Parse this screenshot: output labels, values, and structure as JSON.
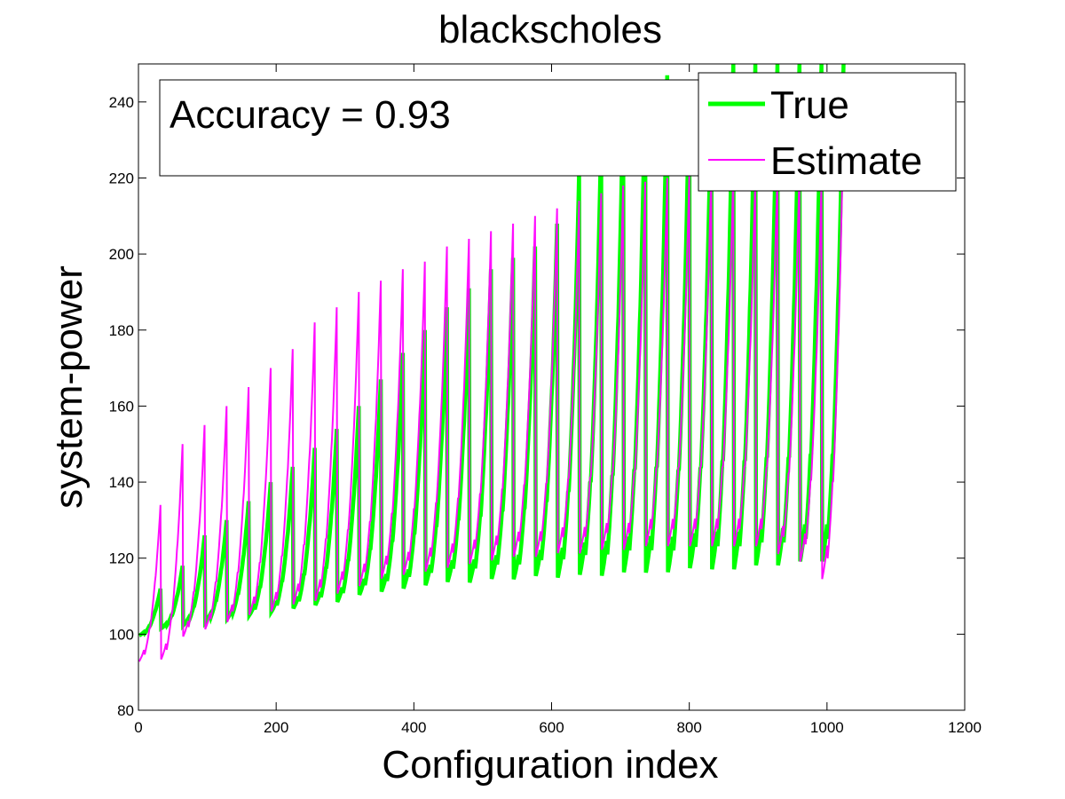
{
  "chart_data": {
    "type": "line",
    "title": "blackscholes",
    "xlabel": "Configuration index",
    "ylabel": "system-power",
    "xlim": [
      0,
      1200
    ],
    "ylim": [
      80,
      250
    ],
    "xticks": [
      0,
      200,
      400,
      600,
      800,
      1000,
      1200
    ],
    "yticks": [
      80,
      100,
      120,
      140,
      160,
      180,
      200,
      220,
      240
    ],
    "grid": false,
    "legend_position": "top-right",
    "annotation": "Accuracy = 0.93",
    "n_points": 1024,
    "series": [
      {
        "name": "True",
        "color": "#00ff00",
        "description": "sawtooth, 32 cycles of 32 configs",
        "cycle_min": [
          100,
          102,
          103,
          104,
          105,
          106,
          107,
          108,
          109,
          110,
          112,
          113,
          114,
          115,
          116,
          116,
          117,
          117,
          118,
          118,
          119,
          119,
          120,
          120,
          120,
          121,
          121,
          121,
          122,
          122,
          123,
          123
        ],
        "cycle_max": [
          112,
          118,
          126,
          130,
          135,
          140,
          144,
          149,
          154,
          160,
          167,
          174,
          180,
          186,
          191,
          196,
          199,
          202,
          208,
          222,
          231,
          240,
          244,
          247,
          243,
          242,
          252,
          252,
          252,
          252,
          252,
          252
        ]
      },
      {
        "name": "Estimate",
        "color": "#ff00ff",
        "description": "sawtooth estimate",
        "cycle_min": [
          94,
          95,
          101,
          103,
          105,
          107,
          108,
          110,
          111,
          113,
          115,
          117,
          118,
          119,
          120,
          121,
          122,
          123,
          123,
          124,
          124,
          125,
          125,
          126,
          126,
          126,
          126,
          126,
          126,
          124,
          122,
          118
        ],
        "cycle_max": [
          134,
          150,
          155,
          160,
          165,
          170,
          175,
          182,
          186,
          190,
          193,
          196,
          198,
          202,
          204,
          206,
          208,
          210,
          212,
          214,
          216,
          218,
          219,
          220,
          221,
          222,
          222,
          222,
          222,
          222,
          220,
          235
        ]
      }
    ]
  }
}
